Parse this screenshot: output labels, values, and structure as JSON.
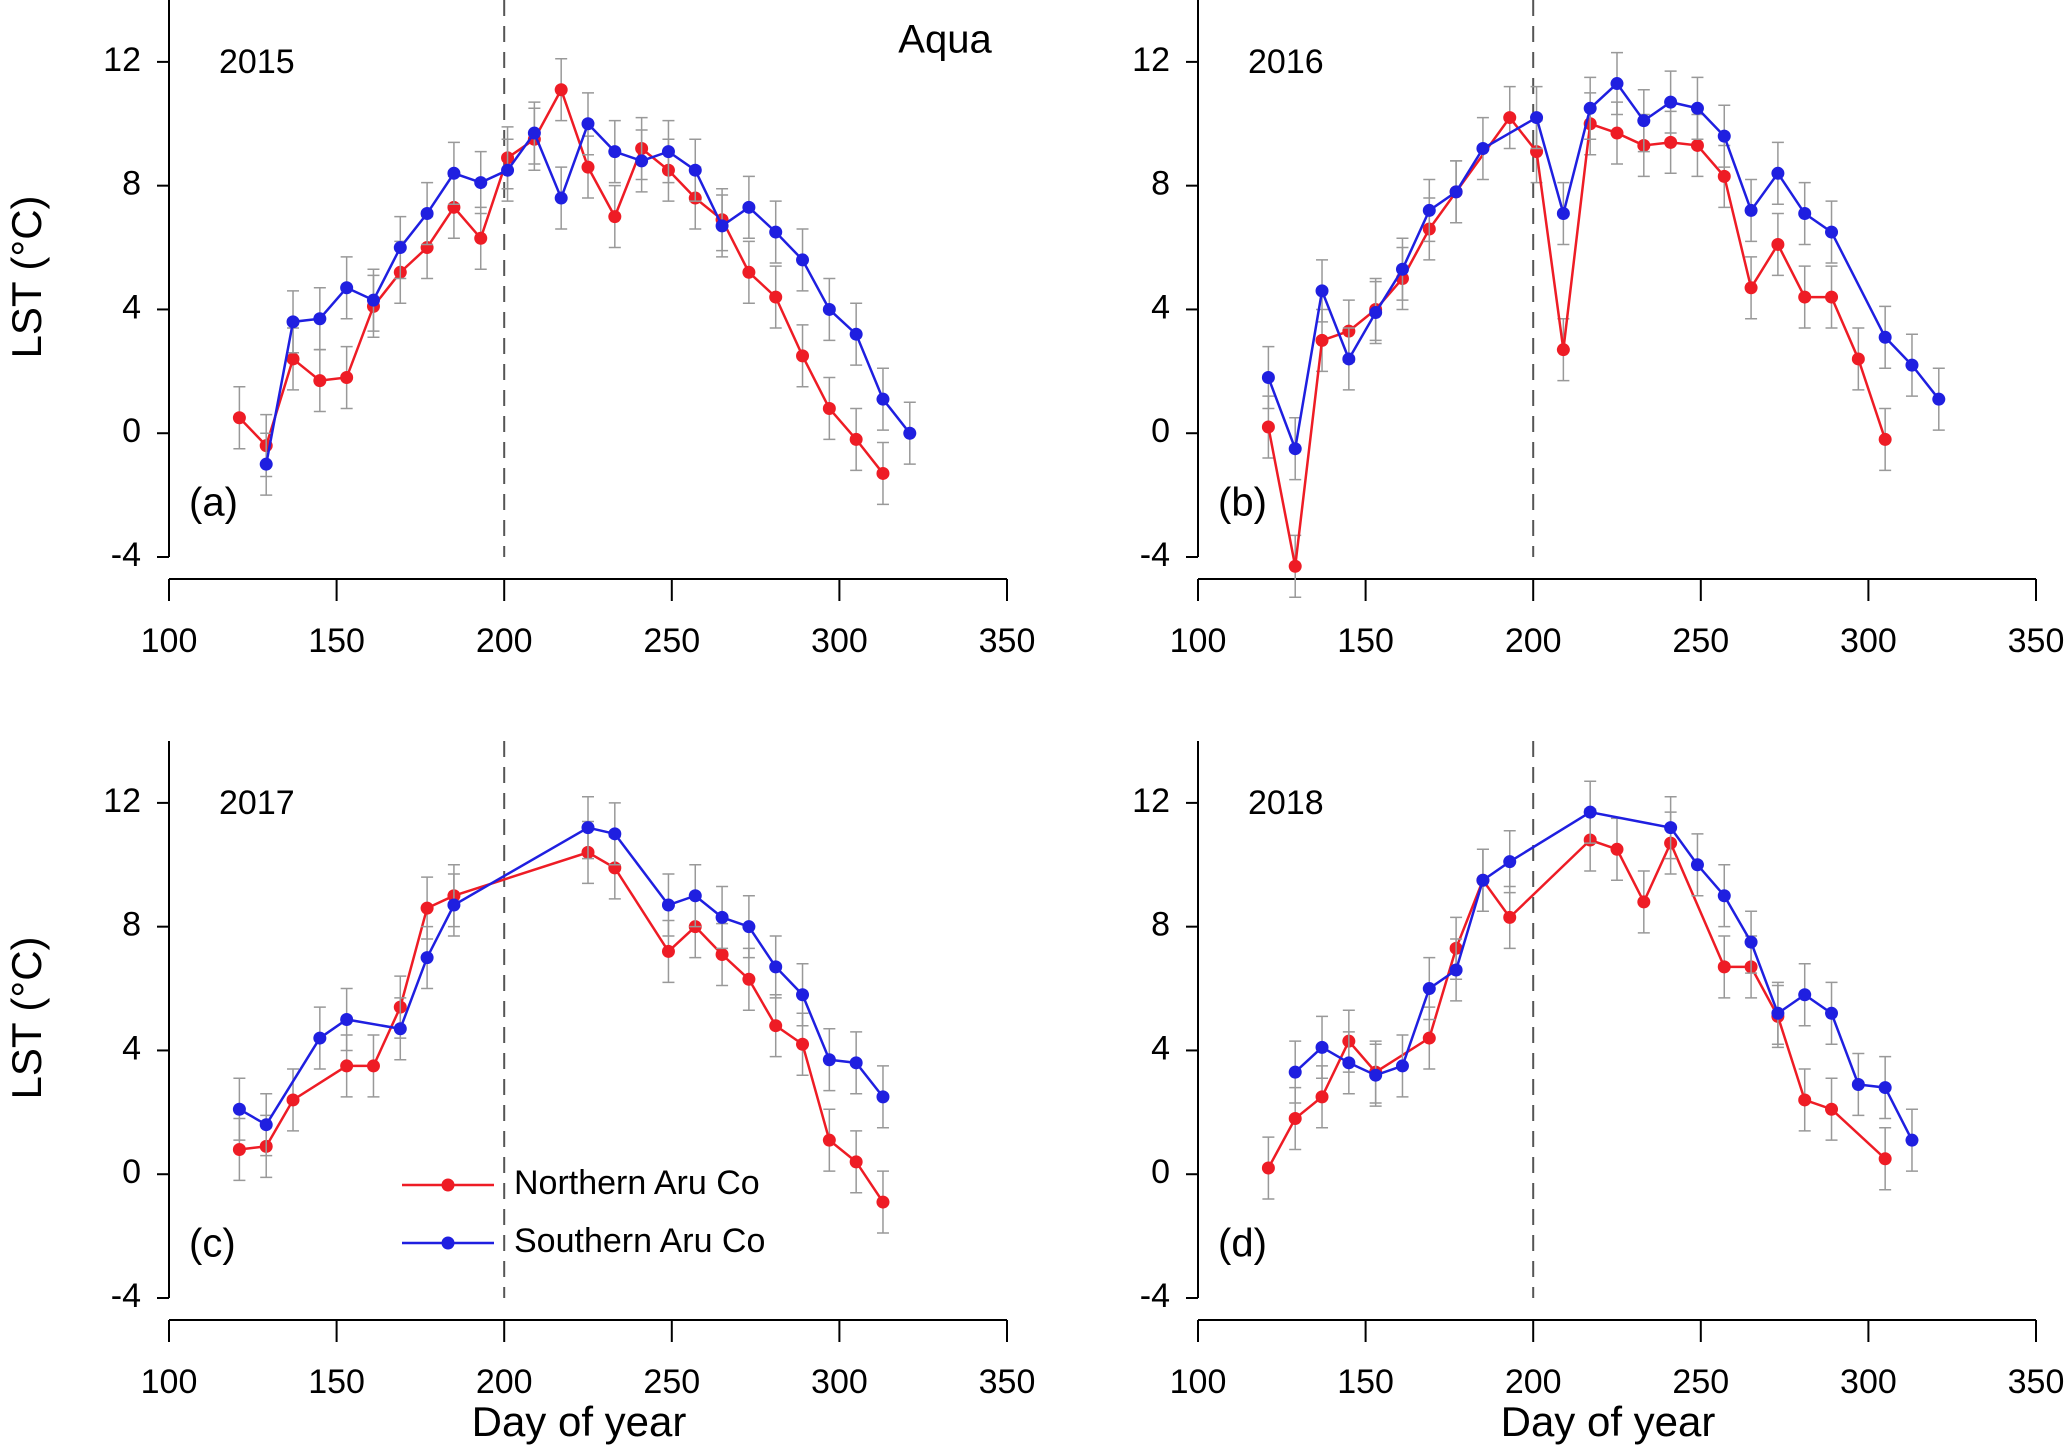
{
  "chart_data": [
    {
      "type": "line",
      "title": "2015",
      "panel_label": "(a)",
      "annotation": "Aqua",
      "y_label": "LST (°C)",
      "xlim": [
        100,
        350
      ],
      "ylim": [
        -4,
        14
      ],
      "xticks": [
        100,
        150,
        200,
        250,
        300,
        350
      ],
      "yticks": [
        -4,
        0,
        4,
        8,
        12
      ],
      "vline": 200,
      "series": [
        {
          "color": "#ee1c25",
          "error": 1,
          "x": [
            121,
            129,
            137,
            145,
            153,
            161,
            169,
            177,
            185,
            193,
            201,
            209,
            217,
            225,
            233,
            241,
            249,
            257,
            265,
            273,
            281,
            289,
            297,
            305,
            313
          ],
          "values": [
            0.5,
            -0.4,
            2.4,
            1.7,
            1.8,
            4.1,
            5.2,
            6.0,
            7.3,
            6.3,
            8.9,
            9.5,
            11.1,
            8.6,
            7.0,
            9.2,
            8.5,
            7.6,
            6.9,
            5.2,
            4.4,
            2.5,
            0.8,
            -0.2,
            -1.3
          ]
        },
        {
          "color": "#1f1fe0",
          "error": 1,
          "x": [
            129,
            137,
            145,
            153,
            161,
            169,
            177,
            185,
            193,
            201,
            209,
            217,
            225,
            233,
            241,
            249,
            257,
            265,
            273,
            281,
            289,
            297,
            305,
            313,
            321
          ],
          "values": [
            -1.0,
            3.6,
            3.7,
            4.7,
            4.3,
            6.0,
            7.1,
            8.4,
            8.1,
            8.5,
            9.7,
            7.6,
            10.0,
            9.1,
            8.8,
            9.1,
            8.5,
            6.7,
            7.3,
            6.5,
            5.6,
            4.0,
            3.2,
            1.1,
            0.0
          ]
        }
      ]
    },
    {
      "type": "line",
      "title": "2016",
      "panel_label": "(b)",
      "xlim": [
        100,
        350
      ],
      "ylim": [
        -4,
        14
      ],
      "xticks": [
        100,
        150,
        200,
        250,
        300,
        350
      ],
      "yticks": [
        -4,
        0,
        4,
        8,
        12
      ],
      "vline": 200,
      "series": [
        {
          "color": "#ee1c25",
          "error": 1,
          "x": [
            121,
            129,
            137,
            145,
            153,
            161,
            169,
            177,
            193,
            201,
            209,
            217,
            225,
            233,
            241,
            249,
            257,
            265,
            273,
            281,
            289,
            297,
            305
          ],
          "values": [
            0.2,
            -4.3,
            3.0,
            3.3,
            4.0,
            5.0,
            6.6,
            7.8,
            10.2,
            9.1,
            2.7,
            10.0,
            9.7,
            9.3,
            9.4,
            9.3,
            8.3,
            4.7,
            6.1,
            4.4,
            4.4,
            2.4,
            -0.2
          ]
        },
        {
          "color": "#1f1fe0",
          "error": 1,
          "x": [
            121,
            129,
            137,
            145,
            153,
            161,
            169,
            177,
            185,
            201,
            209,
            217,
            225,
            233,
            241,
            249,
            257,
            265,
            273,
            281,
            289,
            305,
            313,
            321
          ],
          "values": [
            1.8,
            -0.5,
            4.6,
            2.4,
            3.9,
            5.3,
            7.2,
            7.8,
            9.2,
            10.2,
            7.1,
            10.5,
            11.3,
            10.1,
            10.7,
            10.5,
            9.6,
            7.2,
            8.4,
            7.1,
            6.5,
            3.1,
            2.2,
            1.1
          ]
        }
      ]
    },
    {
      "type": "line",
      "title": "2017",
      "panel_label": "(c)",
      "y_label": "LST (°C)",
      "x_label": "Day of year",
      "xlim": [
        100,
        350
      ],
      "ylim": [
        -4,
        14
      ],
      "xticks": [
        100,
        150,
        200,
        250,
        300,
        350
      ],
      "yticks": [
        -4,
        0,
        4,
        8,
        12
      ],
      "vline": 200,
      "series": [
        {
          "name": "Northern Aru Co",
          "color": "#ee1c25",
          "error": 1,
          "x": [
            121,
            129,
            137,
            153,
            161,
            169,
            177,
            185,
            225,
            233,
            249,
            257,
            265,
            273,
            281,
            289,
            297,
            305,
            313
          ],
          "values": [
            0.8,
            0.9,
            2.4,
            3.5,
            3.5,
            5.4,
            8.6,
            9.0,
            10.4,
            9.9,
            7.2,
            8.0,
            7.1,
            6.3,
            4.8,
            4.2,
            1.1,
            0.4,
            -0.9
          ]
        },
        {
          "name": "Southern Aru Co",
          "color": "#1f1fe0",
          "error": 1,
          "x": [
            121,
            129,
            145,
            153,
            169,
            177,
            185,
            225,
            233,
            249,
            257,
            265,
            273,
            281,
            289,
            297,
            305,
            313
          ],
          "values": [
            2.1,
            1.6,
            4.4,
            5.0,
            4.7,
            7.0,
            8.7,
            11.2,
            11.0,
            8.7,
            9.0,
            8.3,
            8.0,
            6.7,
            5.8,
            3.7,
            3.6,
            2.5
          ]
        }
      ]
    },
    {
      "type": "line",
      "title": "2018",
      "panel_label": "(d)",
      "x_label": "Day of year",
      "xlim": [
        100,
        350
      ],
      "ylim": [
        -4,
        14
      ],
      "xticks": [
        100,
        150,
        200,
        250,
        300,
        350
      ],
      "yticks": [
        -4,
        0,
        4,
        8,
        12
      ],
      "vline": 200,
      "series": [
        {
          "color": "#ee1c25",
          "error": 1,
          "x": [
            121,
            129,
            137,
            145,
            153,
            169,
            177,
            185,
            193,
            217,
            225,
            233,
            241,
            257,
            265,
            273,
            281,
            289,
            305
          ],
          "values": [
            0.2,
            1.8,
            2.5,
            4.3,
            3.3,
            4.4,
            7.3,
            9.5,
            8.3,
            10.8,
            10.5,
            8.8,
            10.7,
            6.7,
            6.7,
            5.1,
            2.4,
            2.1,
            0.5
          ]
        },
        {
          "color": "#1f1fe0",
          "error": 1,
          "x": [
            129,
            137,
            145,
            153,
            161,
            169,
            177,
            185,
            193,
            217,
            241,
            249,
            257,
            265,
            273,
            281,
            289,
            297,
            305,
            313
          ],
          "values": [
            3.3,
            4.1,
            3.6,
            3.2,
            3.5,
            6.0,
            6.6,
            9.5,
            10.1,
            11.7,
            11.2,
            10.0,
            9.0,
            7.5,
            5.2,
            5.8,
            5.2,
            2.9,
            2.8,
            1.1
          ]
        }
      ]
    }
  ]
}
